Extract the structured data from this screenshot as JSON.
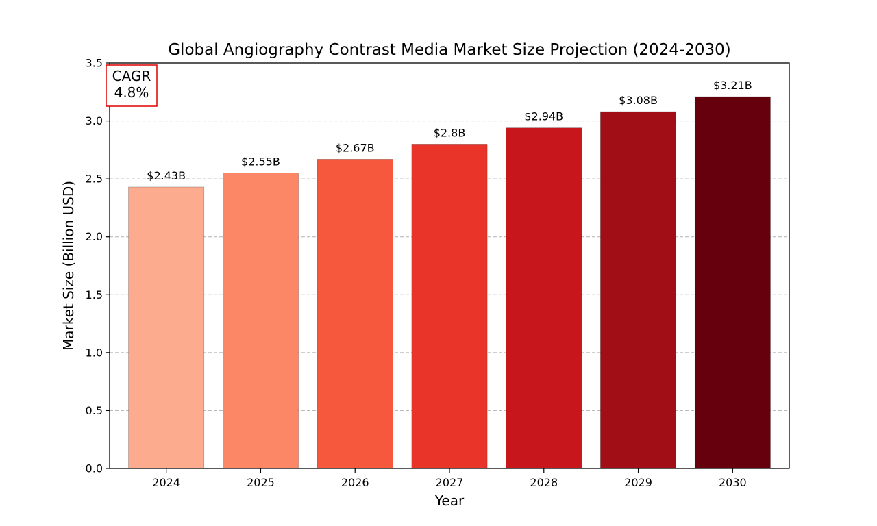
{
  "chart_data": {
    "type": "bar",
    "title": "Global Angiography Contrast Media Market Size Projection (2024-2030)",
    "xlabel": "Year",
    "ylabel": "Market Size (Billion USD)",
    "categories": [
      "2024",
      "2025",
      "2026",
      "2027",
      "2028",
      "2029",
      "2030"
    ],
    "values": [
      2.43,
      2.55,
      2.67,
      2.8,
      2.94,
      3.08,
      3.21
    ],
    "data_labels": [
      "$2.43B",
      "$2.55B",
      "$2.67B",
      "$2.8B",
      "$2.94B",
      "$3.08B",
      "$3.21B"
    ],
    "bar_colors": [
      "#fcab8f",
      "#fc8767",
      "#f6583e",
      "#e83429",
      "#c8171c",
      "#a10e15",
      "#67000d"
    ],
    "ylim": [
      0,
      3.5
    ],
    "yticks": [
      0.0,
      0.5,
      1.0,
      1.5,
      2.0,
      2.5,
      3.0,
      3.5
    ],
    "ytick_labels": [
      "0.0",
      "0.5",
      "1.0",
      "1.5",
      "2.0",
      "2.5",
      "3.0",
      "3.5"
    ],
    "grid": "y-dashed",
    "annotation": {
      "line1": "CAGR",
      "line2": "4.8%",
      "border_color": "#e00000",
      "placement": "top-left"
    }
  }
}
